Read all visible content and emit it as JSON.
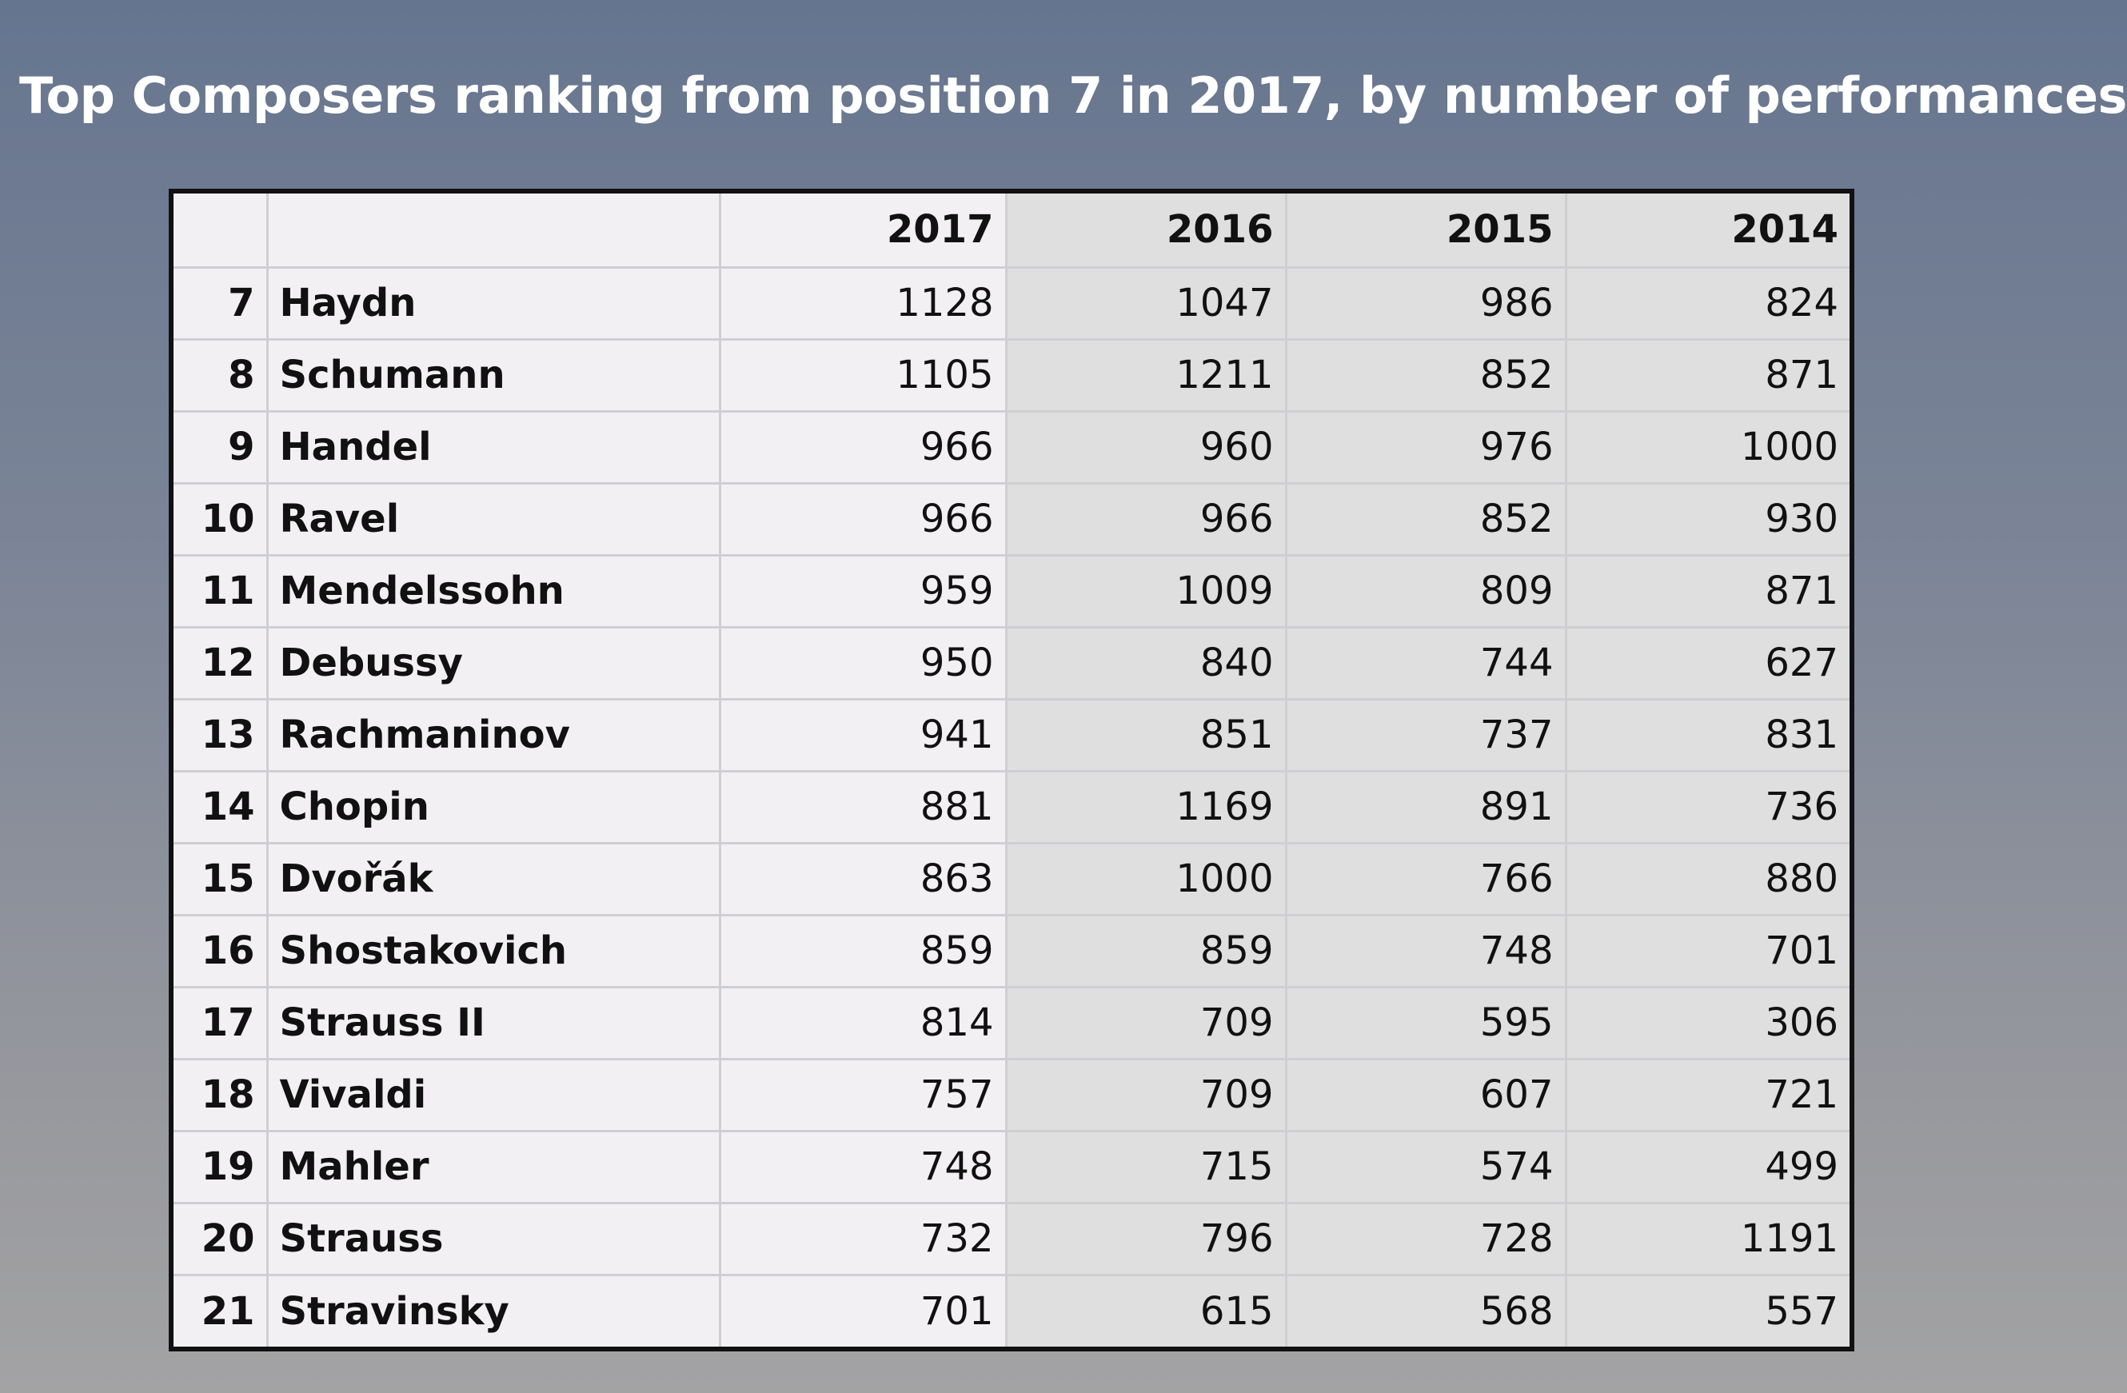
{
  "title": "Top Composers ranking from position 7 in 2017, by number of performances",
  "chart_data": {
    "type": "table",
    "title": "Top Composers ranking from position 7 in 2017, by number of performances",
    "columns": [
      "",
      "",
      "2017",
      "2016",
      "2015",
      "2014"
    ],
    "rows": [
      {
        "rank": "7",
        "name": "Haydn",
        "y2017": "1128",
        "y2016": "1047",
        "y2015": "986",
        "y2014": "824"
      },
      {
        "rank": "8",
        "name": "Schumann",
        "y2017": "1105",
        "y2016": "1211",
        "y2015": "852",
        "y2014": "871"
      },
      {
        "rank": "9",
        "name": "Handel",
        "y2017": "966",
        "y2016": "960",
        "y2015": "976",
        "y2014": "1000"
      },
      {
        "rank": "10",
        "name": "Ravel",
        "y2017": "966",
        "y2016": "966",
        "y2015": "852",
        "y2014": "930"
      },
      {
        "rank": "11",
        "name": "Mendelssohn",
        "y2017": "959",
        "y2016": "1009",
        "y2015": "809",
        "y2014": "871"
      },
      {
        "rank": "12",
        "name": "Debussy",
        "y2017": "950",
        "y2016": "840",
        "y2015": "744",
        "y2014": "627"
      },
      {
        "rank": "13",
        "name": "Rachmaninov",
        "y2017": "941",
        "y2016": "851",
        "y2015": "737",
        "y2014": "831"
      },
      {
        "rank": "14",
        "name": "Chopin",
        "y2017": "881",
        "y2016": "1169",
        "y2015": "891",
        "y2014": "736"
      },
      {
        "rank": "15",
        "name": "Dvořák",
        "y2017": "863",
        "y2016": "1000",
        "y2015": "766",
        "y2014": "880"
      },
      {
        "rank": "16",
        "name": "Shostakovich",
        "y2017": "859",
        "y2016": "859",
        "y2015": "748",
        "y2014": "701"
      },
      {
        "rank": "17",
        "name": "Strauss II",
        "y2017": "814",
        "y2016": "709",
        "y2015": "595",
        "y2014": "306"
      },
      {
        "rank": "18",
        "name": "Vivaldi",
        "y2017": "757",
        "y2016": "709",
        "y2015": "607",
        "y2014": "721"
      },
      {
        "rank": "19",
        "name": "Mahler",
        "y2017": "748",
        "y2016": "715",
        "y2015": "574",
        "y2014": "499"
      },
      {
        "rank": "20",
        "name": "Strauss",
        "y2017": "732",
        "y2016": "796",
        "y2015": "728",
        "y2014": "1191"
      },
      {
        "rank": "21",
        "name": "Stravinsky",
        "y2017": "701",
        "y2016": "615",
        "y2015": "568",
        "y2014": "557"
      }
    ]
  },
  "colors": {
    "background_top": "#66758f",
    "background_bottom": "#a3a3a4",
    "title_text": "#ffffff",
    "table_border": "#111111",
    "cell_light": "#f2f0f3",
    "cell_shaded": "#dfdfdf",
    "grid_line": "#cfcfd3"
  }
}
